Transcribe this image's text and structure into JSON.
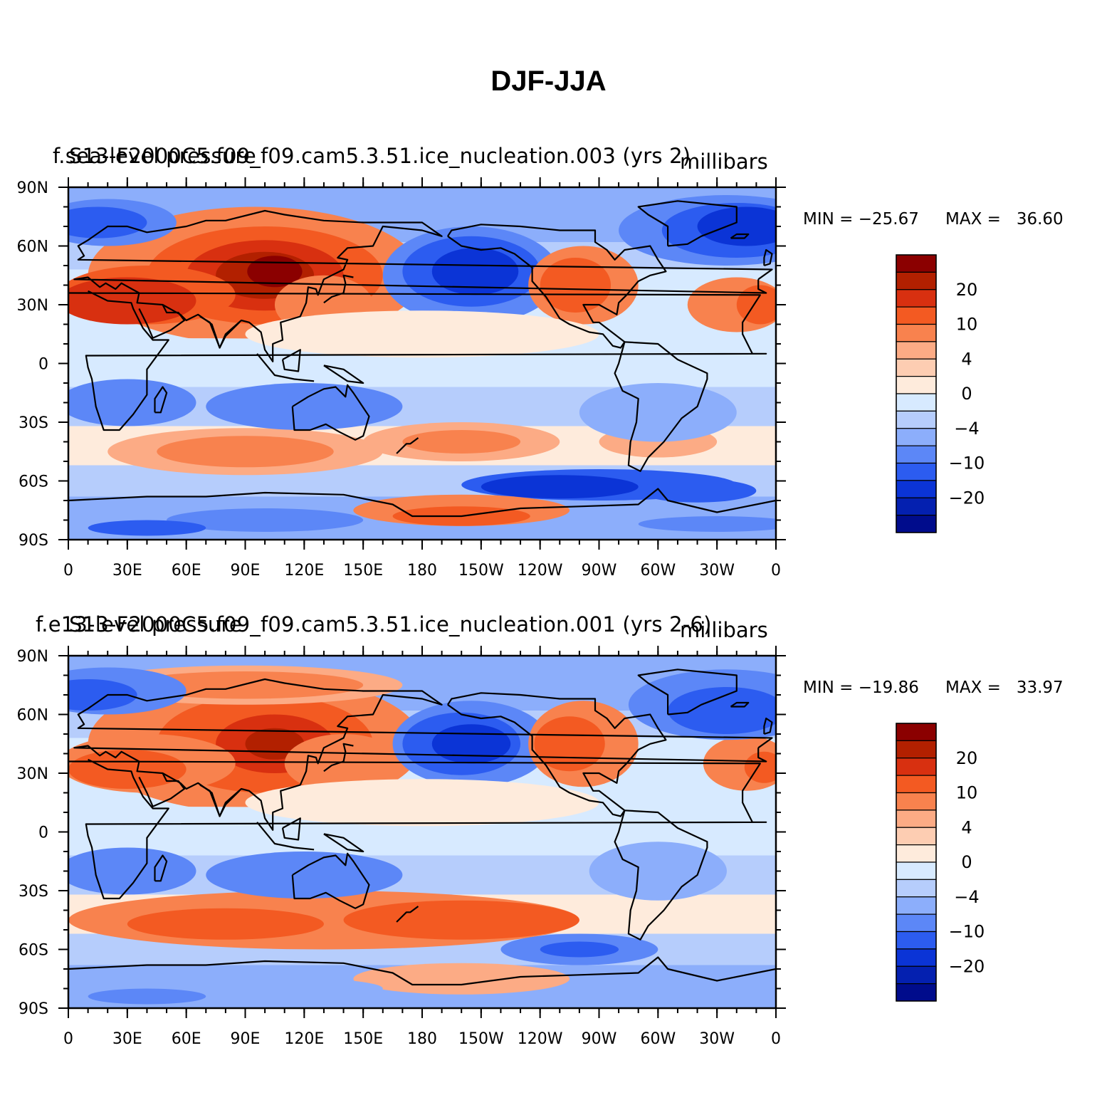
{
  "title": "DJF-JJA",
  "chart_data": [
    {
      "type": "heatmap",
      "left_title": "f.sea-level pressure",
      "center_title": "S13-F2000C5.f09_f09.cam5.3.51.ice_nucleation.003 (yrs 2)",
      "units": "millibars",
      "min_label": "MIN = −25.67",
      "max_label": "MAX =   36.60",
      "min": -25.67,
      "max": 36.6,
      "xticks": [
        "0",
        "30E",
        "60E",
        "90E",
        "120E",
        "150E",
        "180",
        "150W",
        "120W",
        "90W",
        "60W",
        "30W",
        "0"
      ],
      "yticks": [
        "90N",
        "60N",
        "30N",
        "0",
        "30S",
        "60S",
        "90S"
      ],
      "colorbar_labels": [
        "20",
        "10",
        "4",
        "0",
        "−4",
        "−10",
        "−20"
      ],
      "grid": false
    },
    {
      "type": "heatmap",
      "left_title": "f.e13-level pressure",
      "center_title": "S13-F2000C5.f09_f09.cam5.3.51.ice_nucleation.001 (yrs 2-6)",
      "units": "millibars",
      "min_label": "MIN = −19.86",
      "max_label": "MAX =   33.97",
      "min": -19.86,
      "max": 33.97,
      "xticks": [
        "0",
        "30E",
        "60E",
        "90E",
        "120E",
        "150E",
        "180",
        "150W",
        "120W",
        "90W",
        "60W",
        "30W",
        "0"
      ],
      "yticks": [
        "90N",
        "60N",
        "30N",
        "0",
        "30S",
        "60S",
        "90S"
      ],
      "colorbar_labels": [
        "20",
        "10",
        "4",
        "0",
        "−4",
        "−10",
        "−20"
      ],
      "grid": false
    }
  ],
  "colors": {
    "levels": [
      "#8b0000",
      "#b22000",
      "#d83010",
      "#f35a22",
      "#f8824e",
      "#fcab85",
      "#fdcdb2",
      "#feebdc",
      "#d7eaff",
      "#b6cdfc",
      "#8caefb",
      "#5c87f7",
      "#2c5cf0",
      "#0b34d6",
      "#0420b0",
      "#000c8c"
    ],
    "coast": "#000000"
  }
}
